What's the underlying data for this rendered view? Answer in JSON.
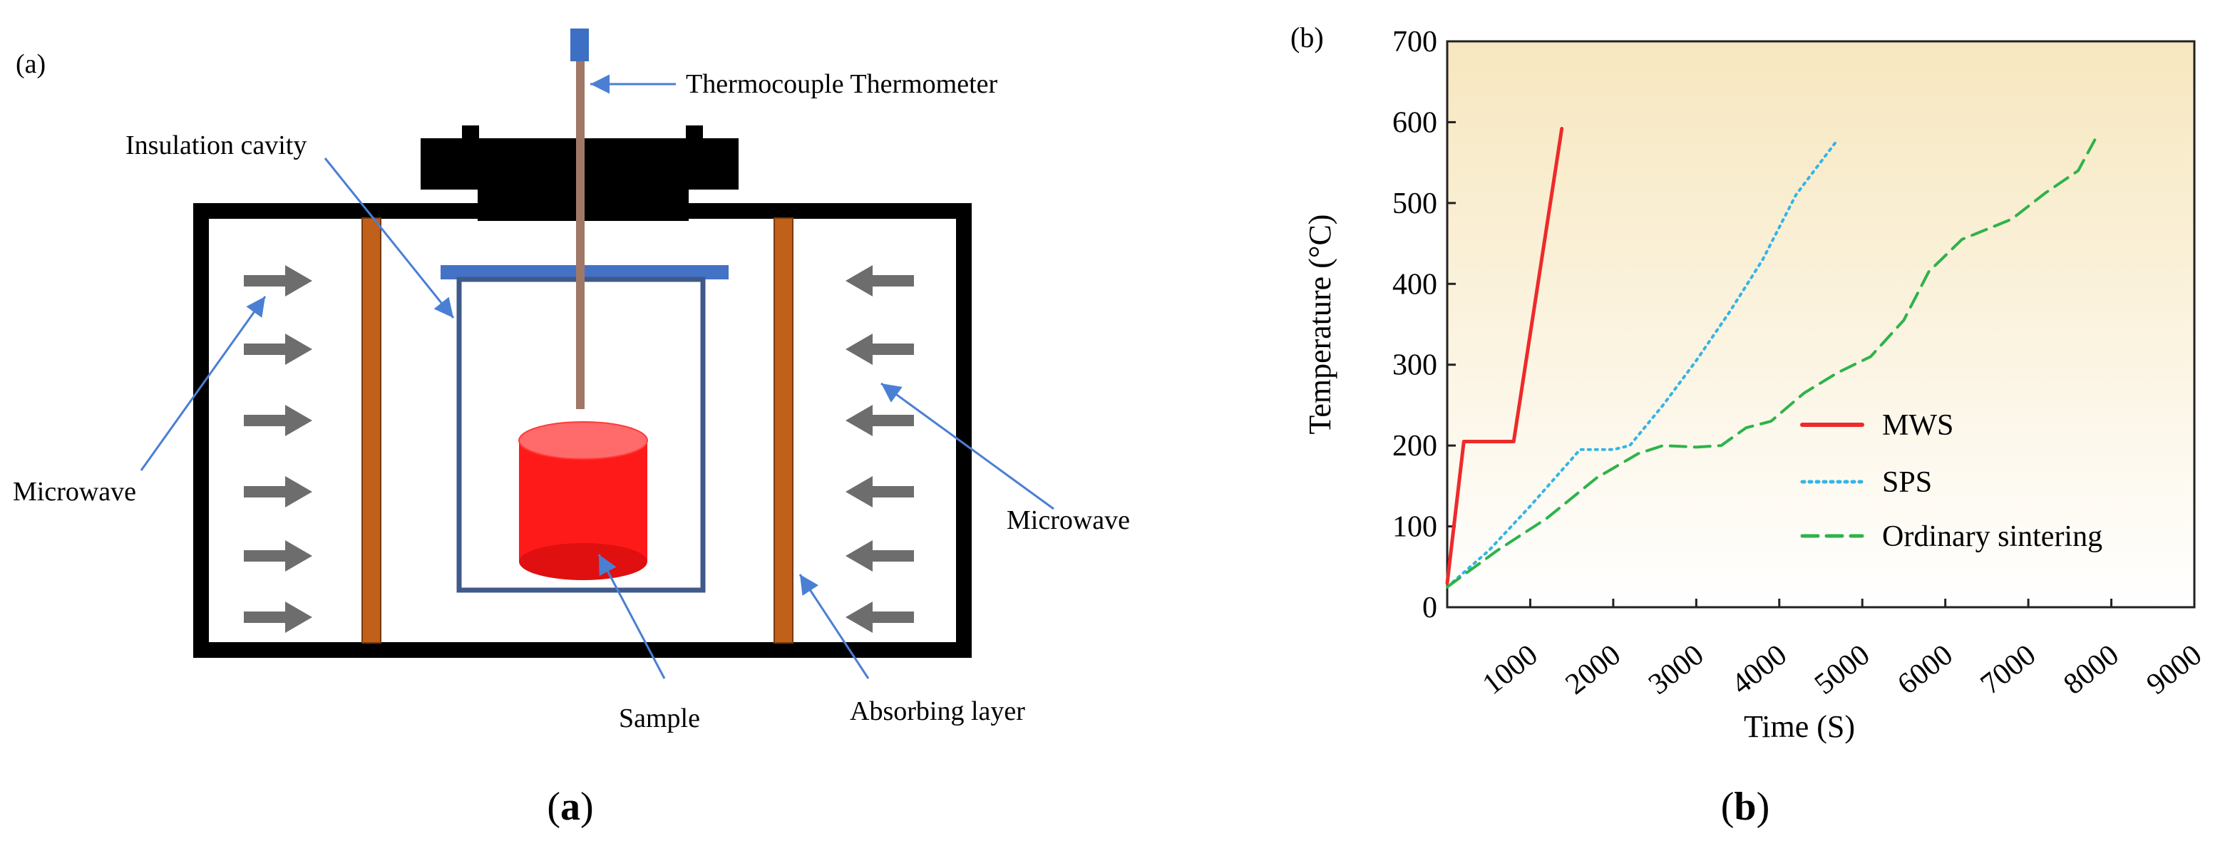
{
  "panel_a": {
    "tag": "(a)",
    "caption_open": "(",
    "caption_letter": "a",
    "caption_close": ")",
    "labels": {
      "thermocouple": "Thermocouple Thermometer",
      "insulation": "Insulation cavity",
      "microwave_left": "Microwave",
      "microwave_right": "Microwave",
      "sample": "Sample",
      "absorbing": "Absorbing layer"
    },
    "colors": {
      "sample": "#ff1a1a",
      "sample_top": "#ff6b6b",
      "absorbing_layer": "#c0601a",
      "lid": "#4472c4",
      "arrow": "#6d6d6d",
      "leader": "#4a7fd4"
    }
  },
  "panel_b": {
    "tag": "(b)",
    "caption_open": "(",
    "caption_letter": "b",
    "caption_close": ")"
  },
  "chart_data": {
    "type": "line",
    "title": "",
    "xlabel": "Time (S)",
    "ylabel": "Temperature (°C)",
    "xlim": [
      0,
      9000
    ],
    "ylim": [
      0,
      700
    ],
    "xticks": [
      1000,
      2000,
      3000,
      4000,
      5000,
      6000,
      7000,
      8000,
      9000
    ],
    "yticks": [
      0,
      100,
      200,
      300,
      400,
      500,
      600,
      700
    ],
    "legend_position": "bottom-right",
    "series": [
      {
        "name": "MWS",
        "color": "#ee2a2a",
        "style": "solid",
        "x": [
          0,
          200,
          800,
          1380
        ],
        "y": [
          30,
          205,
          205,
          592
        ]
      },
      {
        "name": "SPS",
        "color": "#33b5e5",
        "style": "dotted",
        "x": [
          0,
          500,
          1000,
          1600,
          2000,
          2200,
          2600,
          3000,
          3400,
          3800,
          4200,
          4700
        ],
        "y": [
          25,
          70,
          125,
          195,
          195,
          200,
          250,
          305,
          365,
          430,
          510,
          578
        ]
      },
      {
        "name": "Ordinary sintering",
        "color": "#2db34a",
        "style": "dashed",
        "x": [
          0,
          600,
          1200,
          1800,
          2300,
          2600,
          3000,
          3300,
          3600,
          3900,
          4300,
          4700,
          5100,
          5500,
          5800,
          6200,
          6800,
          7200,
          7600,
          7800
        ],
        "y": [
          25,
          70,
          110,
          160,
          190,
          200,
          198,
          200,
          222,
          230,
          265,
          290,
          310,
          355,
          415,
          455,
          480,
          512,
          540,
          578
        ]
      }
    ]
  }
}
